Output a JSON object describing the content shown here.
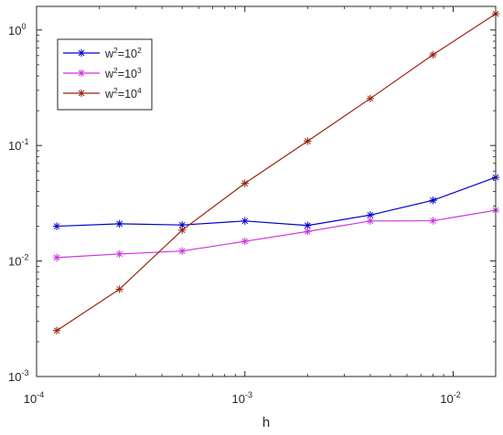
{
  "chart_data": {
    "type": "line",
    "xlabel": "h",
    "ylabel": "",
    "x_scale": "log",
    "y_scale": "log",
    "xlim": [
      0.0001,
      0.016
    ],
    "ylim": [
      0.001,
      1.6
    ],
    "x_ticks": [
      {
        "value": 0.0001,
        "base": "10",
        "exp": "-4"
      },
      {
        "value": 0.001,
        "base": "10",
        "exp": "-3"
      },
      {
        "value": 0.01,
        "base": "10",
        "exp": "-2"
      }
    ],
    "y_ticks": [
      {
        "value": 0.001,
        "base": "10",
        "exp": "-3"
      },
      {
        "value": 0.01,
        "base": "10",
        "exp": "-2"
      },
      {
        "value": 0.1,
        "base": "10",
        "exp": "-1"
      },
      {
        "value": 1,
        "base": "10",
        "exp": "0"
      }
    ],
    "grid": false,
    "legend_position": "top-left",
    "x": [
      0.000125,
      0.00025,
      0.0005,
      0.001,
      0.002,
      0.004,
      0.008,
      0.016
    ],
    "series": [
      {
        "name_base": "w",
        "name_sup1": "2",
        "name_mid": "=10",
        "name_sup2": "2",
        "color": "#0000cc",
        "marker": "asterisk",
        "values": [
          0.02,
          0.021,
          0.0205,
          0.0222,
          0.0203,
          0.025,
          0.0335,
          0.053
        ]
      },
      {
        "name_base": "w",
        "name_sup1": "2",
        "name_mid": "=10",
        "name_sup2": "3",
        "color": "#cc33dd",
        "marker": "asterisk",
        "values": [
          0.0107,
          0.0115,
          0.0122,
          0.0148,
          0.018,
          0.0222,
          0.0223,
          0.0275
        ]
      },
      {
        "name_base": "w",
        "name_sup1": "2",
        "name_mid": "=10",
        "name_sup2": "4",
        "color": "#992211",
        "marker": "asterisk",
        "values": [
          0.0025,
          0.0057,
          0.0185,
          0.047,
          0.109,
          0.255,
          0.61,
          1.38
        ]
      }
    ]
  }
}
